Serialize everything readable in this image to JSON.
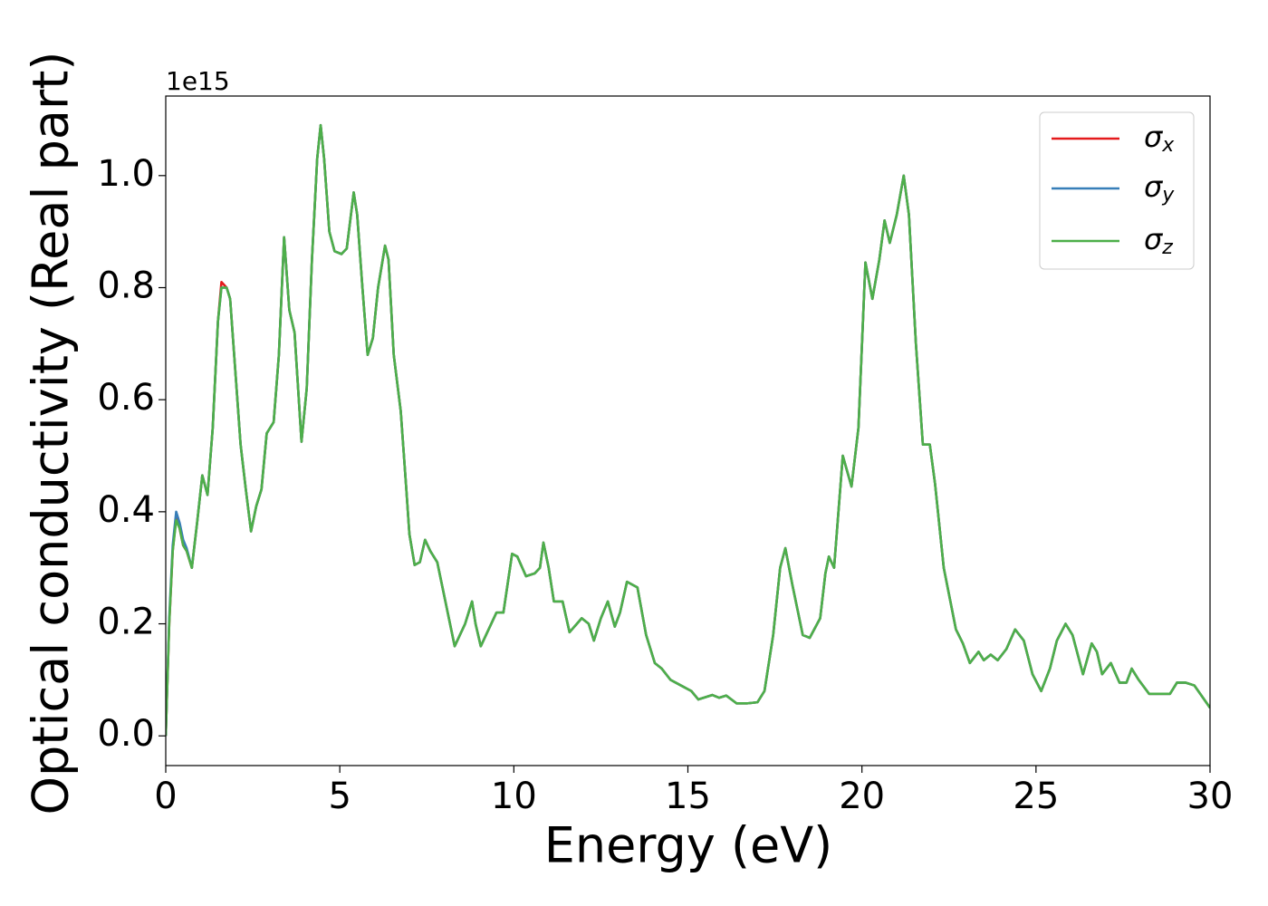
{
  "chart_data": {
    "type": "line",
    "xlabel": "Energy (eV)",
    "ylabel": "Optical conductivity (Real part)",
    "offset_label": "1e15",
    "xlim": [
      0,
      30
    ],
    "xticks": [
      0,
      5,
      10,
      15,
      20,
      25,
      30
    ],
    "ylim": [
      -0.053,
      1.142
    ],
    "yticks": [
      {
        "value": 0,
        "label": "0.0"
      },
      0.2,
      0.4,
      0.6,
      0.8,
      {
        "value": 1,
        "label": "1.0"
      }
    ],
    "legend": "upper right",
    "x": [
      0,
      0.1,
      0.2,
      0.3,
      0.4,
      0.5,
      0.6,
      0.75,
      0.9,
      1.05,
      1.2,
      1.35,
      1.5,
      1.6,
      1.75,
      1.85,
      2.0,
      2.15,
      2.3,
      2.45,
      2.6,
      2.75,
      2.9,
      3.1,
      3.25,
      3.4,
      3.55,
      3.7,
      3.9,
      4.05,
      4.2,
      4.35,
      4.45,
      4.55,
      4.7,
      4.85,
      5.05,
      5.2,
      5.4,
      5.5,
      5.65,
      5.8,
      5.95,
      6.1,
      6.3,
      6.4,
      6.55,
      6.75,
      6.9,
      7.0,
      7.15,
      7.3,
      7.45,
      7.6,
      7.8,
      8.0,
      8.3,
      8.6,
      8.8,
      8.9,
      9.05,
      9.2,
      9.5,
      9.7,
      9.95,
      10.1,
      10.35,
      10.6,
      10.75,
      10.85,
      11.0,
      11.15,
      11.4,
      11.6,
      11.95,
      12.15,
      12.3,
      12.5,
      12.7,
      12.9,
      13.05,
      13.25,
      13.55,
      13.8,
      14.05,
      14.25,
      14.5,
      14.8,
      15.1,
      15.3,
      15.7,
      15.9,
      16.1,
      16.4,
      16.7,
      17.0,
      17.2,
      17.45,
      17.65,
      17.8,
      18.0,
      18.3,
      18.5,
      18.8,
      18.95,
      19.05,
      19.2,
      19.45,
      19.7,
      19.9,
      20.1,
      20.3,
      20.5,
      20.65,
      20.8,
      21.0,
      21.2,
      21.35,
      21.55,
      21.75,
      21.95,
      22.1,
      22.35,
      22.7,
      22.9,
      23.1,
      23.35,
      23.5,
      23.7,
      23.9,
      24.15,
      24.4,
      24.65,
      24.9,
      25.15,
      25.4,
      25.6,
      25.85,
      26.05,
      26.35,
      26.6,
      26.75,
      26.9,
      27.15,
      27.4,
      27.6,
      27.75,
      27.95,
      28.25,
      28.6,
      28.85,
      29.05,
      29.3,
      29.55,
      30
    ],
    "series": [
      {
        "name": "σx",
        "color": "#e41a1c",
        "values": [
          0,
          0.2,
          0.33,
          0.39,
          0.37,
          0.34,
          0.33,
          0.3,
          0.38,
          0.465,
          0.43,
          0.55,
          0.74,
          0.81,
          0.8,
          0.78,
          0.65,
          0.52,
          0.44,
          0.365,
          0.41,
          0.44,
          0.54,
          0.56,
          0.68,
          0.89,
          0.76,
          0.72,
          0.525,
          0.62,
          0.85,
          1.03,
          1.09,
          1.03,
          0.9,
          0.865,
          0.86,
          0.87,
          0.97,
          0.93,
          0.8,
          0.68,
          0.71,
          0.8,
          0.875,
          0.85,
          0.68,
          0.58,
          0.45,
          0.36,
          0.305,
          0.31,
          0.35,
          0.33,
          0.31,
          0.25,
          0.16,
          0.2,
          0.24,
          0.2,
          0.16,
          0.18,
          0.22,
          0.22,
          0.325,
          0.32,
          0.285,
          0.29,
          0.3,
          0.345,
          0.3,
          0.24,
          0.24,
          0.185,
          0.21,
          0.2,
          0.17,
          0.21,
          0.24,
          0.195,
          0.22,
          0.275,
          0.265,
          0.18,
          0.13,
          0.12,
          0.1,
          0.09,
          0.08,
          0.065,
          0.073,
          0.068,
          0.072,
          0.058,
          0.058,
          0.06,
          0.08,
          0.18,
          0.3,
          0.335,
          0.27,
          0.18,
          0.175,
          0.21,
          0.29,
          0.32,
          0.3,
          0.5,
          0.445,
          0.55,
          0.845,
          0.78,
          0.85,
          0.92,
          0.88,
          0.93,
          1.0,
          0.93,
          0.7,
          0.52,
          0.52,
          0.45,
          0.3,
          0.19,
          0.165,
          0.13,
          0.15,
          0.135,
          0.145,
          0.135,
          0.155,
          0.19,
          0.17,
          0.11,
          0.08,
          0.12,
          0.17,
          0.2,
          0.18,
          0.11,
          0.165,
          0.15,
          0.11,
          0.13,
          0.095,
          0.095,
          0.12,
          0.1,
          0.075,
          0.075,
          0.075,
          0.095,
          0.095,
          0.09,
          0.05
        ]
      },
      {
        "name": "σy",
        "color": "#377eb8",
        "values": [
          0,
          0.21,
          0.34,
          0.4,
          0.38,
          0.35,
          0.335,
          0.3,
          0.38,
          0.465,
          0.43,
          0.55,
          0.74,
          0.8,
          0.8,
          0.78,
          0.65,
          0.52,
          0.44,
          0.365,
          0.41,
          0.44,
          0.54,
          0.56,
          0.68,
          0.89,
          0.76,
          0.72,
          0.525,
          0.62,
          0.85,
          1.03,
          1.09,
          1.03,
          0.9,
          0.865,
          0.86,
          0.87,
          0.97,
          0.93,
          0.8,
          0.68,
          0.71,
          0.8,
          0.875,
          0.85,
          0.68,
          0.58,
          0.45,
          0.36,
          0.305,
          0.31,
          0.35,
          0.33,
          0.31,
          0.25,
          0.16,
          0.2,
          0.24,
          0.2,
          0.16,
          0.18,
          0.22,
          0.22,
          0.325,
          0.32,
          0.285,
          0.29,
          0.3,
          0.345,
          0.3,
          0.24,
          0.24,
          0.185,
          0.21,
          0.2,
          0.17,
          0.21,
          0.24,
          0.195,
          0.22,
          0.275,
          0.265,
          0.18,
          0.13,
          0.12,
          0.1,
          0.09,
          0.08,
          0.065,
          0.073,
          0.068,
          0.072,
          0.058,
          0.058,
          0.06,
          0.08,
          0.18,
          0.3,
          0.335,
          0.27,
          0.18,
          0.175,
          0.21,
          0.29,
          0.32,
          0.3,
          0.5,
          0.445,
          0.55,
          0.845,
          0.78,
          0.85,
          0.92,
          0.88,
          0.93,
          1.0,
          0.93,
          0.7,
          0.52,
          0.52,
          0.45,
          0.3,
          0.19,
          0.165,
          0.13,
          0.15,
          0.135,
          0.145,
          0.135,
          0.155,
          0.19,
          0.17,
          0.11,
          0.08,
          0.12,
          0.17,
          0.2,
          0.18,
          0.11,
          0.165,
          0.15,
          0.11,
          0.13,
          0.095,
          0.095,
          0.12,
          0.1,
          0.075,
          0.075,
          0.075,
          0.095,
          0.095,
          0.09,
          0.05
        ]
      },
      {
        "name": "σz",
        "color": "#4daf4a",
        "values": [
          0,
          0.2,
          0.33,
          0.385,
          0.37,
          0.34,
          0.33,
          0.3,
          0.38,
          0.465,
          0.43,
          0.55,
          0.74,
          0.8,
          0.8,
          0.78,
          0.65,
          0.52,
          0.44,
          0.365,
          0.41,
          0.44,
          0.54,
          0.56,
          0.68,
          0.89,
          0.76,
          0.72,
          0.525,
          0.62,
          0.85,
          1.03,
          1.09,
          1.03,
          0.9,
          0.865,
          0.86,
          0.87,
          0.97,
          0.93,
          0.8,
          0.68,
          0.71,
          0.8,
          0.875,
          0.85,
          0.68,
          0.58,
          0.45,
          0.36,
          0.305,
          0.31,
          0.35,
          0.33,
          0.31,
          0.25,
          0.16,
          0.2,
          0.24,
          0.2,
          0.16,
          0.18,
          0.22,
          0.22,
          0.325,
          0.32,
          0.285,
          0.29,
          0.3,
          0.345,
          0.3,
          0.24,
          0.24,
          0.185,
          0.21,
          0.2,
          0.17,
          0.21,
          0.24,
          0.195,
          0.22,
          0.275,
          0.265,
          0.18,
          0.13,
          0.12,
          0.1,
          0.09,
          0.08,
          0.065,
          0.073,
          0.068,
          0.072,
          0.058,
          0.058,
          0.06,
          0.08,
          0.18,
          0.3,
          0.335,
          0.27,
          0.18,
          0.175,
          0.21,
          0.29,
          0.32,
          0.3,
          0.5,
          0.445,
          0.55,
          0.845,
          0.78,
          0.85,
          0.92,
          0.88,
          0.93,
          1.0,
          0.93,
          0.7,
          0.52,
          0.52,
          0.45,
          0.3,
          0.19,
          0.165,
          0.13,
          0.15,
          0.135,
          0.145,
          0.135,
          0.155,
          0.19,
          0.17,
          0.11,
          0.08,
          0.12,
          0.17,
          0.2,
          0.18,
          0.11,
          0.165,
          0.15,
          0.11,
          0.13,
          0.095,
          0.095,
          0.12,
          0.1,
          0.075,
          0.075,
          0.075,
          0.095,
          0.095,
          0.09,
          0.05
        ]
      }
    ]
  }
}
